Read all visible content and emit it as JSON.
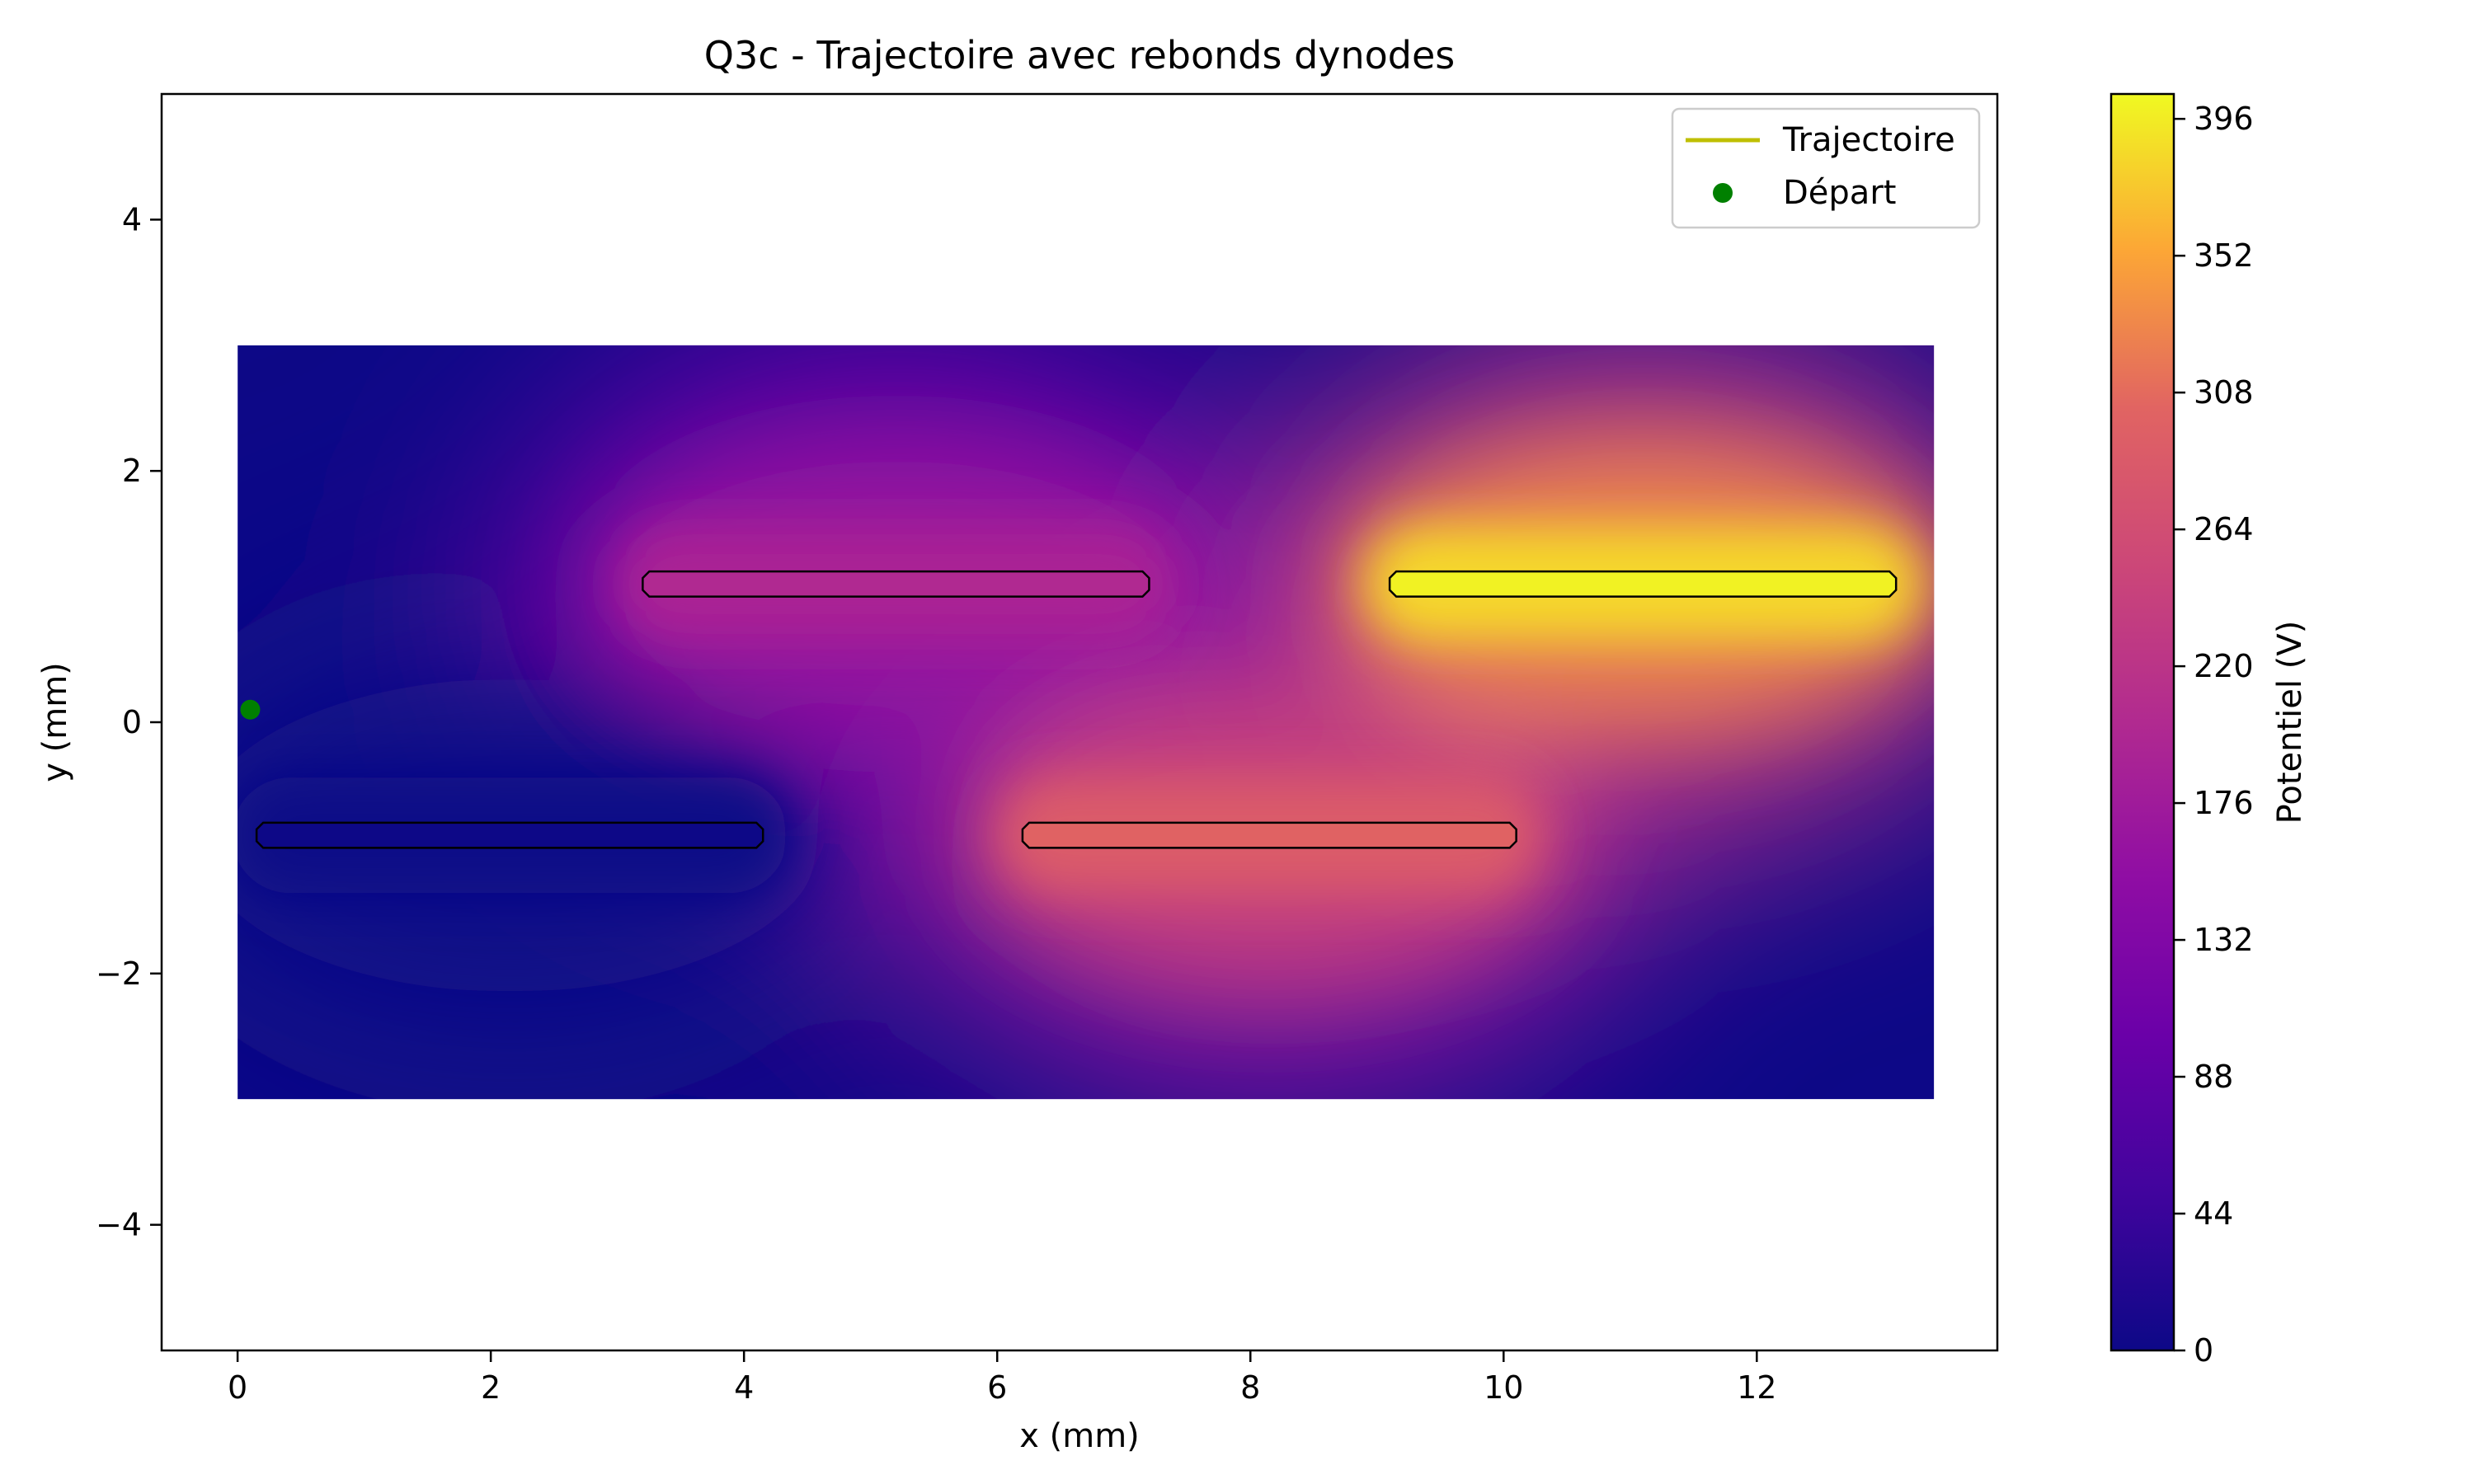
{
  "chart_data": {
    "type": "heatmap",
    "title": "Q3c - Trajectoire avec rebonds dynodes",
    "xlabel": "x (mm)",
    "ylabel": "y (mm)",
    "xlim": [
      -0.6,
      13.9
    ],
    "ylim": [
      -5,
      5
    ],
    "x_ticks": [
      0,
      2,
      4,
      6,
      8,
      10,
      12
    ],
    "x_tick_labels": [
      "0",
      "2",
      "4",
      "6",
      "8",
      "10",
      "12"
    ],
    "y_ticks": [
      -4,
      -2,
      0,
      2,
      4
    ],
    "y_tick_labels": [
      "−4",
      "−2",
      "0",
      "2",
      "4"
    ],
    "grid": false,
    "domain": {
      "x": [
        0,
        13.4
      ],
      "y": [
        -3,
        3
      ]
    },
    "colormap": "plasma",
    "colorbar": {
      "label": "Potentiel (V)",
      "range": [
        0,
        404
      ],
      "ticks": [
        0,
        44,
        88,
        132,
        176,
        220,
        264,
        308,
        352,
        396
      ],
      "tick_labels": [
        "0",
        "44",
        "88",
        "132",
        "176",
        "220",
        "264",
        "308",
        "352",
        "396"
      ]
    },
    "dynodes": [
      {
        "x": [
          0.15,
          4.15
        ],
        "y": -0.9,
        "potential": 0
      },
      {
        "x": [
          3.2,
          7.2
        ],
        "y": 1.1,
        "potential": 200
      },
      {
        "x": [
          6.2,
          10.1
        ],
        "y": -0.9,
        "potential": 300
      },
      {
        "x": [
          9.1,
          13.1
        ],
        "y": 1.1,
        "potential": 400
      }
    ],
    "series": [
      {
        "name": "Trajectoire",
        "type": "line",
        "color": "#bfbf00",
        "x": [],
        "y": []
      },
      {
        "name": "Départ",
        "type": "scatter",
        "color": "#008000",
        "x": [
          0.1
        ],
        "y": [
          0.1
        ]
      }
    ],
    "legend": {
      "position": "top-right",
      "entries": [
        "Trajectoire",
        "Départ"
      ]
    }
  }
}
